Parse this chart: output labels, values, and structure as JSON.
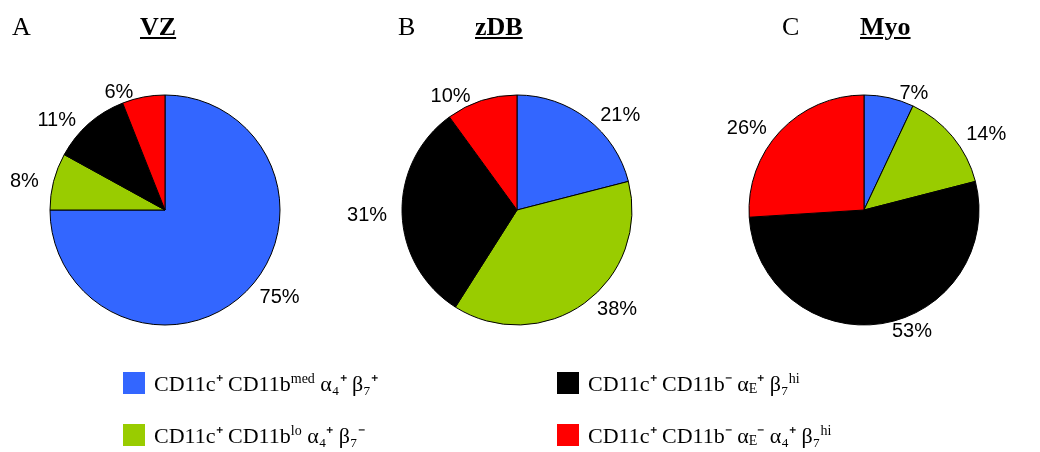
{
  "chart_data": [
    {
      "type": "pie",
      "title": "VZ",
      "annotations": [
        "A"
      ],
      "categories": [
        "CD11c⁺ CD11b$^{med}$ α₄⁺ β₇⁺",
        "CD11c⁺ CD11b$^{lo}$ α₄⁺ β₇⁻",
        "CD11c⁺ CD11b⁻ α$_{E}$⁺ β₇$^{hi}$",
        "CD11c⁺ CD11b⁻ α$_{E}$⁻ α₄⁺ β₇$^{hi}$"
      ],
      "values": [
        75,
        8,
        11,
        6
      ],
      "value_labels": [
        "75%",
        "8%",
        "11%",
        "6%"
      ],
      "colors": [
        "#3366ff",
        "#99cc00",
        "#000000",
        "#ff0000"
      ],
      "legend": "bottom"
    },
    {
      "type": "pie",
      "title": "zDB",
      "annotations": [
        "B"
      ],
      "categories": [
        null,
        null,
        null,
        null
      ],
      "values": [
        21,
        38,
        31,
        10
      ],
      "value_labels": [
        "21%",
        "38%",
        "31%",
        "10%"
      ],
      "colors": [
        "#3366ff",
        "#99cc00",
        "#000000",
        "#ff0000"
      ]
    },
    {
      "type": "pie",
      "title": "Myo",
      "annotations": [
        "C"
      ],
      "categories": [
        null,
        null,
        null,
        null
      ],
      "values": [
        7,
        14,
        53,
        26
      ],
      "value_labels": [
        "7%",
        "14%",
        "53%",
        "26%"
      ],
      "colors": [
        "#3366ff",
        "#99cc00",
        "#000000",
        "#ff0000"
      ]
    }
  ]
}
